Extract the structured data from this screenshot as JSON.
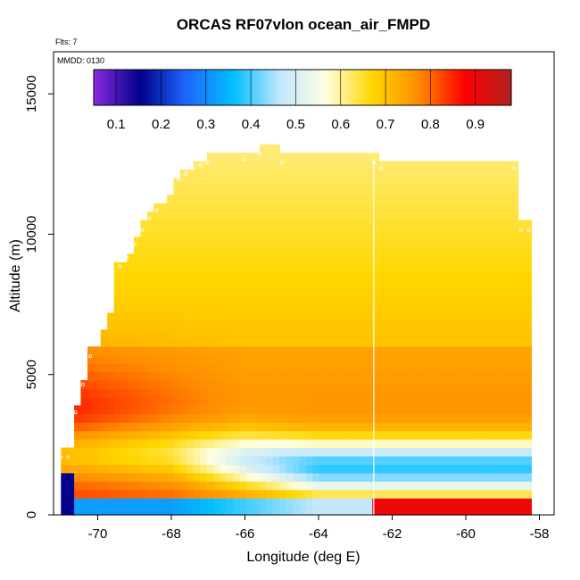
{
  "chart_data": {
    "type": "heatmap",
    "title": "ORCAS RF07vlon ocean_air_FMPD",
    "subtitle_flights": "Flts: 7",
    "subtitle_date": "MMDD: 0130",
    "xlabel": "Longitude (deg E)",
    "ylabel": "Altitude (m)",
    "xlim": [
      -71.2,
      -57.6
    ],
    "ylim": [
      0,
      16500
    ],
    "xticks": [
      -70,
      -68,
      -66,
      -64,
      -62,
      -60,
      -58
    ],
    "xtick_labels": [
      "-70",
      "-68",
      "-66",
      "-64",
      "-62",
      "-60",
      "-58"
    ],
    "yticks": [
      0,
      5000,
      10000,
      15000
    ],
    "ytick_labels": [
      "0",
      "5000",
      "10000",
      "15000"
    ],
    "colorbar": {
      "range": [
        0.05,
        0.98
      ],
      "ticks": [
        0.1,
        0.2,
        0.3,
        0.4,
        0.5,
        0.6,
        0.7,
        0.8,
        0.9
      ],
      "tick_labels": [
        "0.1",
        "0.2",
        "0.3",
        "0.4",
        "0.5",
        "0.6",
        "0.7",
        "0.8",
        "0.9"
      ],
      "colors": [
        "#8a2be2",
        "#00008b",
        "#1f66ff",
        "#00bfff",
        "#bfe6ff",
        "#ffffe0",
        "#ffd700",
        "#ff8c00",
        "#ff0000",
        "#b22222"
      ]
    },
    "field_description": "ocean air fraction FMPD vs longitude and altitude",
    "top_envelope_lon": [
      -71.0,
      -70.8,
      -70.6,
      -70.4,
      -70.2,
      -70.0,
      -69.8,
      -69.6,
      -69.4,
      -69.2,
      -69.0,
      -68.8,
      -68.6,
      -68.4,
      -68.2,
      -68.0,
      -67.8,
      -67.6,
      -67.4,
      -67.2,
      -67.0,
      -66.0,
      -65.6,
      -65.0,
      -62.5,
      -62.3,
      -58.7,
      -58.5,
      -58.3
    ],
    "top_envelope_alt": [
      2200,
      2200,
      3800,
      4800,
      5800,
      6600,
      7200,
      8800,
      9000,
      9300,
      9800,
      10300,
      10700,
      11000,
      11400,
      11800,
      12100,
      12300,
      12500,
      12600,
      12700,
      12800,
      13000,
      12700,
      12700,
      12500,
      12500,
      10300,
      10300
    ],
    "flight_vertical_line_lon": -62.5,
    "flight_vertical_line_alt": [
      0,
      12700
    ]
  }
}
